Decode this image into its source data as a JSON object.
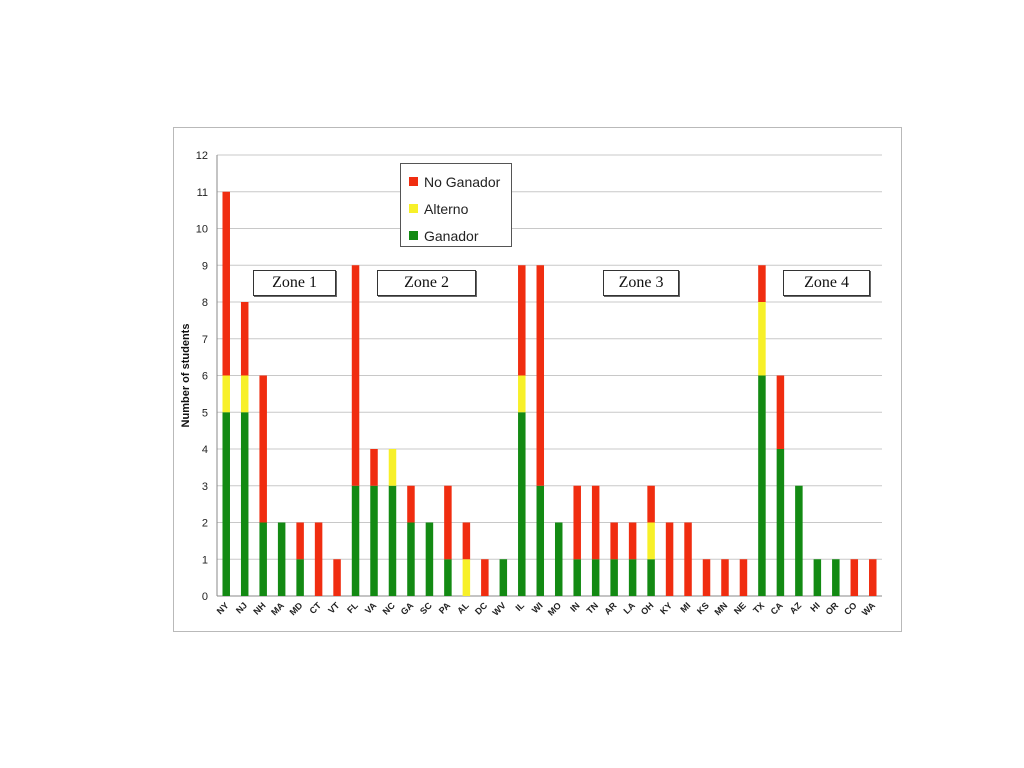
{
  "chart_data": {
    "type": "bar",
    "stacked": true,
    "ylabel": "Number of students",
    "xlabel": "",
    "ylim": [
      0,
      12
    ],
    "yticks": [
      0,
      1,
      2,
      3,
      4,
      5,
      6,
      7,
      8,
      9,
      10,
      11,
      12
    ],
    "grid": true,
    "categories": [
      "NY",
      "NJ",
      "NH",
      "MA",
      "MD",
      "CT",
      "VT",
      "FL",
      "VA",
      "NC",
      "GA",
      "SC",
      "PA",
      "AL",
      "DC",
      "WV",
      "IL",
      "WI",
      "MO",
      "IN",
      "TN",
      "AR",
      "LA",
      "OH",
      "KY",
      "MI",
      "KS",
      "MN",
      "NE",
      "TX",
      "CA",
      "AZ",
      "HI",
      "OR",
      "CO",
      "WA"
    ],
    "series": [
      {
        "name": "Ganador",
        "color": "#138a13",
        "values": [
          5,
          5,
          2,
          2,
          1,
          0,
          0,
          3,
          3,
          3,
          2,
          2,
          1,
          0,
          0,
          1,
          5,
          3,
          2,
          1,
          1,
          1,
          1,
          1,
          0,
          0,
          0,
          0,
          0,
          6,
          4,
          3,
          1,
          1,
          0,
          0
        ]
      },
      {
        "name": "Alterno",
        "color": "#f7f029",
        "values": [
          1,
          1,
          0,
          0,
          0,
          0,
          0,
          0,
          0,
          1,
          0,
          0,
          0,
          1,
          0,
          0,
          1,
          0,
          0,
          0,
          0,
          0,
          0,
          1,
          0,
          0,
          0,
          0,
          0,
          2,
          0,
          0,
          0,
          0,
          0,
          0
        ]
      },
      {
        "name": "No Ganador",
        "color": "#f02d10",
        "values": [
          5,
          2,
          4,
          0,
          1,
          2,
          1,
          6,
          1,
          0,
          1,
          0,
          2,
          1,
          1,
          0,
          3,
          6,
          0,
          2,
          2,
          1,
          1,
          1,
          2,
          2,
          1,
          1,
          1,
          1,
          2,
          0,
          0,
          0,
          1,
          1
        ]
      }
    ],
    "legend": {
      "placement": "top-center",
      "entries": [
        "No Ganador",
        "Alterno",
        "Ganador"
      ]
    },
    "annotations": [
      "Zone 1",
      "Zone 2",
      "Zone 3",
      "Zone 4"
    ]
  }
}
